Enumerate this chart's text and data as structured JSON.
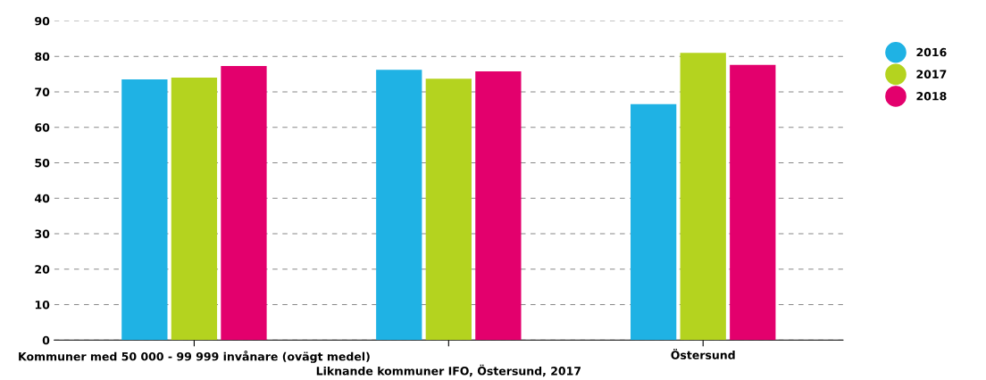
{
  "chart_data": {
    "type": "bar",
    "categories": [
      "Kommuner med 50 000 - 99 999 invånare (ovägt medel)",
      null,
      "Östersund"
    ],
    "xlabel": "Liknande kommuner IFO, Östersund, 2017",
    "series": [
      {
        "name": "2016",
        "color": "#1fb2e4",
        "values": [
          73.5,
          76.2,
          66.5
        ]
      },
      {
        "name": "2017",
        "color": "#b4d31f",
        "values": [
          74.0,
          73.7,
          81.0
        ]
      },
      {
        "name": "2018",
        "color": "#e3006d",
        "values": [
          77.3,
          75.8,
          77.6
        ]
      }
    ],
    "ylim": [
      0,
      90
    ],
    "yticks": [
      0,
      10,
      20,
      30,
      40,
      50,
      60,
      70,
      80,
      90
    ],
    "grid": "y",
    "legend": "right"
  }
}
